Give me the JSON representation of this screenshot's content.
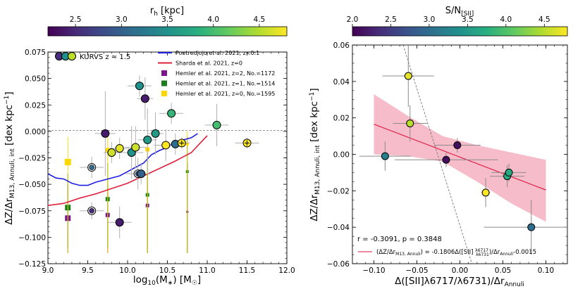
{
  "chart_data": [
    {
      "type": "scatter",
      "panel": "left",
      "colorbar": {
        "label": "r_h [kpc]",
        "range": [
          2.2,
          4.8
        ],
        "ticks": [
          2.5,
          3.0,
          3.5,
          4.0,
          4.5
        ],
        "tick_labels": [
          "2.5",
          "3.0",
          "3.5",
          "4.0",
          "4.5"
        ]
      },
      "xlabel": "log10(M*) [M☉]",
      "ylabel": "ΔZ/Δr_M13, Annuli, int [dex kpc⁻¹]",
      "xlim": [
        9.0,
        12.0
      ],
      "ylim": [
        -0.125,
        0.075
      ],
      "xticks": [
        9.0,
        9.5,
        10.0,
        10.5,
        11.0,
        11.5,
        12.0
      ],
      "xtick_labels": [
        "9.0",
        "9.5",
        "10.0",
        "10.5",
        "11.0",
        "11.5",
        "12.0"
      ],
      "yticks": [
        -0.125,
        -0.1,
        -0.075,
        -0.05,
        -0.025,
        0.0,
        0.025,
        0.05,
        0.075
      ],
      "ytick_labels": [
        "−0.125",
        "−0.100",
        "−0.075",
        "−0.050",
        "−0.025",
        "0.000",
        "0.025",
        "0.050",
        "0.075"
      ],
      "legend": {
        "location": "top-right",
        "kurvs_label": "KURVS z ≈ 1.5",
        "entries": [
          {
            "label": "Poetrodjojo et al. 2021, z<0.1",
            "color": "#1f1fe0",
            "kind": "line"
          },
          {
            "label": "Sharda et al. 2021, z=0",
            "color": "#e0203a",
            "kind": "line"
          },
          {
            "label": "Hemler et al. 2021, z=2, No.=1172",
            "color": "#7b168c",
            "kind": "square"
          },
          {
            "label": "Hemler et al. 2021, z=1, No.=1514",
            "color": "#1a7f1a",
            "kind": "square"
          },
          {
            "label": "Hemler et al. 2021, z=0, No.=1595",
            "color": "#ffd700",
            "kind": "square"
          }
        ]
      },
      "series": [
        {
          "name": "Poetrodjojo et al. 2021, z<0.1",
          "color": "#1f1fe0",
          "x": [
            9.0,
            9.1,
            9.2,
            9.3,
            9.4,
            9.5,
            9.6,
            9.7,
            9.8,
            9.9,
            10.0,
            10.1,
            10.2,
            10.3,
            10.4,
            10.5,
            10.6,
            10.7,
            10.8,
            10.88
          ],
          "y": [
            -0.04,
            -0.044,
            -0.045,
            -0.049,
            -0.051,
            -0.051,
            -0.048,
            -0.046,
            -0.044,
            -0.042,
            -0.038,
            -0.034,
            -0.03,
            -0.022,
            -0.018,
            -0.015,
            -0.01,
            -0.008,
            -0.006,
            -0.002
          ]
        },
        {
          "name": "Sharda et al. 2021, z=0",
          "color": "#e0203a",
          "x": [
            9.0,
            9.2,
            9.4,
            9.6,
            9.8,
            10.0,
            10.2,
            10.4,
            10.6,
            10.8,
            11.0
          ],
          "y": [
            -0.07,
            -0.068,
            -0.063,
            -0.059,
            -0.054,
            -0.049,
            -0.042,
            -0.035,
            -0.028,
            -0.02,
            -0.004
          ]
        },
        {
          "name": "Hemler et al. 2021, z=2, No.=1172",
          "color": "#7b168c",
          "points": [
            {
              "x": 9.25,
              "y": -0.082,
              "ylo": -0.115,
              "yhi": -0.05,
              "size": 8
            },
            {
              "x": 9.75,
              "y": -0.079,
              "ylo": -0.115,
              "yhi": -0.05,
              "size": 6
            },
            {
              "x": 10.25,
              "y": -0.07,
              "ylo": -0.115,
              "yhi": -0.04,
              "size": 5
            },
            {
              "x": 10.75,
              "y": -0.076,
              "ylo": -0.115,
              "yhi": -0.03,
              "size": 3
            }
          ]
        },
        {
          "name": "Hemler et al. 2021, z=1, No.=1514",
          "color": "#1a7f1a",
          "points": [
            {
              "x": 9.25,
              "y": -0.072,
              "ylo": -0.11,
              "yhi": -0.04,
              "size": 8
            },
            {
              "x": 9.75,
              "y": -0.064,
              "ylo": -0.11,
              "yhi": -0.03,
              "size": 6
            },
            {
              "x": 10.25,
              "y": -0.06,
              "ylo": -0.115,
              "yhi": -0.02,
              "size": 5
            },
            {
              "x": 10.75,
              "y": -0.038,
              "ylo": -0.115,
              "yhi": -0.005,
              "size": 4
            }
          ]
        },
        {
          "name": "Hemler et al. 2021, z=0, No.=1595",
          "color": "#ffd700",
          "points": [
            {
              "x": 9.25,
              "y": -0.029,
              "ylo": -0.115,
              "yhi": -0.005,
              "size": 9
            },
            {
              "x": 9.75,
              "y": -0.018,
              "ylo": -0.115,
              "yhi": -0.005,
              "size": 7
            },
            {
              "x": 10.25,
              "y": -0.017,
              "ylo": -0.115,
              "yhi": -0.005,
              "size": 6
            },
            {
              "x": 10.75,
              "y": -0.012,
              "ylo": -0.115,
              "yhi": 0.0,
              "size": 4
            }
          ]
        },
        {
          "name": "KURVS z ≈ 1.5",
          "points": [
            {
              "x": 9.55,
              "y": -0.034,
              "xerr": 0.15,
              "yerr": 0.01,
              "c": 3.1,
              "ring": true
            },
            {
              "x": 9.55,
              "y": -0.075,
              "xerr": 0.15,
              "yerr": 0.008,
              "c": 2.5,
              "ring": true
            },
            {
              "x": 9.72,
              "y": -0.002,
              "xerr": 0.13,
              "yerr": 0.04,
              "c": 2.4
            },
            {
              "x": 9.8,
              "y": -0.02,
              "xerr": 0.1,
              "yerr": 0.01,
              "c": 4.6
            },
            {
              "x": 9.9,
              "y": -0.016,
              "xerr": 0.12,
              "yerr": 0.01,
              "c": 4.7
            },
            {
              "x": 9.9,
              "y": -0.086,
              "xerr": 0.15,
              "yerr": 0.015,
              "c": 2.4
            },
            {
              "x": 10.05,
              "y": -0.02,
              "xerr": 0.15,
              "yerr": 0.025,
              "c": 3.5
            },
            {
              "x": 10.1,
              "y": -0.015,
              "xerr": 0.13,
              "yerr": 0.02,
              "c": 4.6
            },
            {
              "x": 10.13,
              "y": -0.04,
              "xerr": 0.15,
              "yerr": 0.015,
              "c": 3.0,
              "ring": true
            },
            {
              "x": 10.17,
              "y": -0.04,
              "xerr": 0.12,
              "yerr": 0.01,
              "c": 3.0
            },
            {
              "x": 10.15,
              "y": 0.043,
              "xerr": 0.15,
              "yerr": 0.01,
              "c": 3.5
            },
            {
              "x": 10.22,
              "y": 0.031,
              "xerr": 0.1,
              "yerr": 0.02,
              "c": 2.4
            },
            {
              "x": 10.25,
              "y": -0.008,
              "xerr": 0.12,
              "yerr": 0.03,
              "c": 3.6
            },
            {
              "x": 10.35,
              "y": -0.002,
              "xerr": 0.1,
              "yerr": 0.02,
              "c": 3.6
            },
            {
              "x": 10.48,
              "y": -0.013,
              "xerr": 0.15,
              "yerr": 0.015,
              "c": 4.8
            },
            {
              "x": 10.55,
              "y": 0.017,
              "xerr": 0.15,
              "yerr": 0.01,
              "c": 3.9
            },
            {
              "x": 10.6,
              "y": -0.012,
              "xerr": 0.13,
              "yerr": 0.01,
              "c": 3.1
            },
            {
              "x": 10.68,
              "y": -0.011,
              "xerr": 0.1,
              "yerr": 0.005,
              "c": 4.8,
              "plus": true
            },
            {
              "x": 11.12,
              "y": 0.006,
              "xerr": 0.15,
              "yerr": 0.02,
              "c": 4.0
            },
            {
              "x": 11.5,
              "y": -0.011,
              "xerr": 0.15,
              "yerr": 0.005,
              "c": 4.8,
              "plus": true
            }
          ]
        }
      ]
    },
    {
      "type": "scatter",
      "panel": "right",
      "colorbar": {
        "label": "S/N_[SII]",
        "range": [
          2.0,
          4.8
        ],
        "ticks": [
          2.0,
          2.5,
          3.0,
          3.5,
          4.0,
          4.5
        ],
        "tick_labels": [
          "2.0",
          "2.5",
          "3.0",
          "3.5",
          "4.0",
          "4.5"
        ]
      },
      "xlabel": "Δ([SII]λ6717/λ6731)/Δr_Annuli",
      "ylabel": "ΔZ/Δr_M13, Annuli, int [dex kpc⁻¹]",
      "xlim": [
        -0.125,
        0.125
      ],
      "ylim": [
        -0.06,
        0.06
      ],
      "xticks": [
        -0.1,
        -0.05,
        0.0,
        0.05,
        0.1
      ],
      "xtick_labels": [
        "−0.10",
        "−0.05",
        "0.00",
        "0.05",
        "0.10"
      ],
      "yticks": [
        -0.06,
        -0.04,
        -0.02,
        0.0,
        0.02,
        0.04,
        0.06
      ],
      "ytick_labels": [
        "−0.06",
        "−0.04",
        "−0.02",
        "0.00",
        "0.02",
        "0.04",
        "0.06"
      ],
      "stats_text": "r = -0.3091, p = 0.3848",
      "fit": {
        "label": "(ΔZ/Δr_M13, Annuli) = -0.1806Δ([SII] λ6717/λ6731)/Δr_Annuli-0.0015",
        "slope": -0.1806,
        "intercept": -0.0015,
        "x_range": [
          -0.1,
          0.1
        ],
        "band_top_y": [
          0.033,
          0.021,
          0.01,
          0.005,
          0.001,
          -0.003
        ],
        "band_bottom_y": [
          0.0,
          -0.001,
          -0.004,
          -0.015,
          -0.027,
          -0.037
        ],
        "band_x": [
          -0.1,
          -0.06,
          -0.02,
          0.02,
          0.06,
          0.1
        ],
        "color": "#dc143c",
        "band_color": "#f4a6b7"
      },
      "dashed_line": {
        "x": [
          -0.066,
          0.014
        ],
        "y": [
          0.06,
          -0.06
        ]
      },
      "points": [
        {
          "x": -0.06,
          "y": 0.043,
          "xerr": 0.03,
          "yerr": 0.017,
          "c": 4.7
        },
        {
          "x": -0.058,
          "y": 0.017,
          "xerr": 0.02,
          "yerr": 0.01,
          "c": 4.5
        },
        {
          "x": -0.087,
          "y": -0.001,
          "xerr": 0.03,
          "yerr": 0.008,
          "c": 3.2
        },
        {
          "x": -0.016,
          "y": -0.003,
          "xerr": 0.06,
          "yerr": 0.004,
          "c": 2.1
        },
        {
          "x": -0.003,
          "y": 0.005,
          "xerr": 0.027,
          "yerr": 0.004,
          "c": 2.1
        },
        {
          "x": 0.03,
          "y": -0.021,
          "xerr": 0.005,
          "yerr": 0.008,
          "c": 4.8
        },
        {
          "x": 0.055,
          "y": -0.012,
          "xerr": 0.02,
          "yerr": 0.006,
          "c": 3.7
        },
        {
          "x": 0.057,
          "y": -0.01,
          "xerr": 0.02,
          "yerr": 0.005,
          "c": 3.7
        },
        {
          "x": 0.083,
          "y": -0.04,
          "xerr": 0.055,
          "yerr": 0.015,
          "c": 3.0
        }
      ]
    }
  ]
}
